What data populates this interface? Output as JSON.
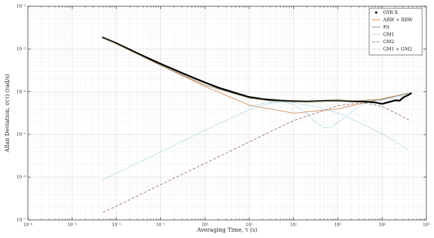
{
  "chart_data": {
    "type": "line",
    "xlabel": "Averaging Time, τ (s)",
    "ylabel": "Allan Deviation, σ(τ) (rad/s)",
    "xscale": "log",
    "yscale": "log",
    "xlim": [
      0.0001,
      100000
    ],
    "ylim": [
      1e-07,
      0.01
    ],
    "grid": true,
    "legend_position": "top-right",
    "x_ticks": [
      {
        "value": 0.0001,
        "label": "10⁻⁴"
      },
      {
        "value": 0.001,
        "label": "10⁻³"
      },
      {
        "value": 0.01,
        "label": "10⁻²"
      },
      {
        "value": 0.1,
        "label": "10⁻¹"
      },
      {
        "value": 1,
        "label": "10⁰"
      },
      {
        "value": 10,
        "label": "10¹"
      },
      {
        "value": 100,
        "label": "10²"
      },
      {
        "value": 1000,
        "label": "10³"
      },
      {
        "value": 10000,
        "label": "10⁴"
      },
      {
        "value": 100000,
        "label": "10⁵"
      }
    ],
    "y_ticks": [
      {
        "value": 1e-07,
        "label": "10⁻⁷"
      },
      {
        "value": 1e-06,
        "label": "10⁻⁶"
      },
      {
        "value": 1e-05,
        "label": "10⁻⁵"
      },
      {
        "value": 0.0001,
        "label": "10⁻⁴"
      },
      {
        "value": 0.001,
        "label": "10⁻³"
      },
      {
        "value": 0.01,
        "label": "10⁻²"
      }
    ],
    "series": [
      {
        "name": "GYR X",
        "style": "markers-dense",
        "color": "#000000",
        "x": [
          0.005,
          0.01,
          0.02,
          0.03,
          0.05,
          0.1,
          0.2,
          0.5,
          1,
          2,
          5,
          10,
          20,
          50,
          100,
          200,
          500,
          1000,
          2000,
          5000,
          7000,
          10000,
          15000,
          20000,
          25000,
          30000,
          40000,
          45000
        ],
        "y": [
          0.00185,
          0.00136,
          0.00097,
          0.00079,
          0.00062,
          0.00045,
          0.00033,
          0.00022,
          0.000165,
          0.000125,
          9.3e-05,
          7.5e-05,
          6.7e-05,
          6.2e-05,
          6e-05,
          5.9e-05,
          6.1e-05,
          6.2e-05,
          6e-05,
          5.8e-05,
          5.6e-05,
          5.2e-05,
          5.8e-05,
          6.3e-05,
          6.2e-05,
          7.3e-05,
          8.5e-05,
          9.2e-05
        ]
      },
      {
        "name": "ARW + RRW",
        "style": "line",
        "color": "#d08a55",
        "x": [
          0.005,
          0.01,
          0.1,
          1,
          10,
          100,
          1000,
          10000,
          40000
        ],
        "y": [
          0.00185,
          0.00131,
          0.000414,
          0.000133,
          4.86e-05,
          3.15e-05,
          3.95e-05,
          6.85e-05,
          9.3e-05
        ]
      },
      {
        "name": "Fit",
        "style": "line",
        "color": "#8a7a52",
        "x": [
          0.005,
          0.01,
          0.1,
          1,
          10,
          30,
          100,
          300,
          1000,
          3000,
          10000,
          40000
        ],
        "y": [
          0.00185,
          0.00131,
          0.000416,
          0.000143,
          7.1e-05,
          6.1e-05,
          5.8e-05,
          5.9e-05,
          6.1e-05,
          6.2e-05,
          6.6e-05,
          9.3e-05
        ]
      },
      {
        "name": "GM1",
        "style": "dotted",
        "color": "#5aa8c8",
        "x": [
          0.005,
          0.01,
          0.1,
          1,
          10,
          30,
          60,
          100,
          300,
          1000,
          3000,
          10000,
          40000
        ],
        "y": [
          8.8e-07,
          1.24e-06,
          3.9e-06,
          1.25e-05,
          3.8e-05,
          5.4e-05,
          5.7e-05,
          5.5e-05,
          4.5e-05,
          3.2e-05,
          1.9e-05,
          1.05e-05,
          4.3e-06
        ]
      },
      {
        "name": "GM2",
        "style": "dashed",
        "color": "#9a6a6a",
        "x": [
          0.005,
          0.01,
          0.1,
          1,
          10,
          100,
          1000,
          3000,
          5000,
          10000,
          20000,
          40000
        ],
        "y": [
          1.5e-07,
          2.1e-07,
          6.7e-07,
          2.1e-06,
          6.7e-06,
          2.1e-05,
          4.7e-05,
          5.4e-05,
          5.3e-05,
          4.5e-05,
          3.2e-05,
          2.2e-05
        ]
      },
      {
        "name": "GM1 + GM2",
        "style": "dotted",
        "color": "#5aa8c8",
        "x": [
          10,
          30,
          60,
          100,
          200,
          300,
          500,
          700,
          1000,
          2000,
          3000,
          5000,
          10000,
          20000,
          40000
        ],
        "y": [
          4.5e-05,
          5.8e-05,
          5.8e-05,
          5e-05,
          3.2e-05,
          2e-05,
          1.42e-05,
          1.48e-05,
          1.9e-05,
          3.3e-05,
          4.5e-05,
          5.7e-05,
          6.3e-05,
          7.3e-05,
          8.8e-05
        ]
      }
    ]
  }
}
